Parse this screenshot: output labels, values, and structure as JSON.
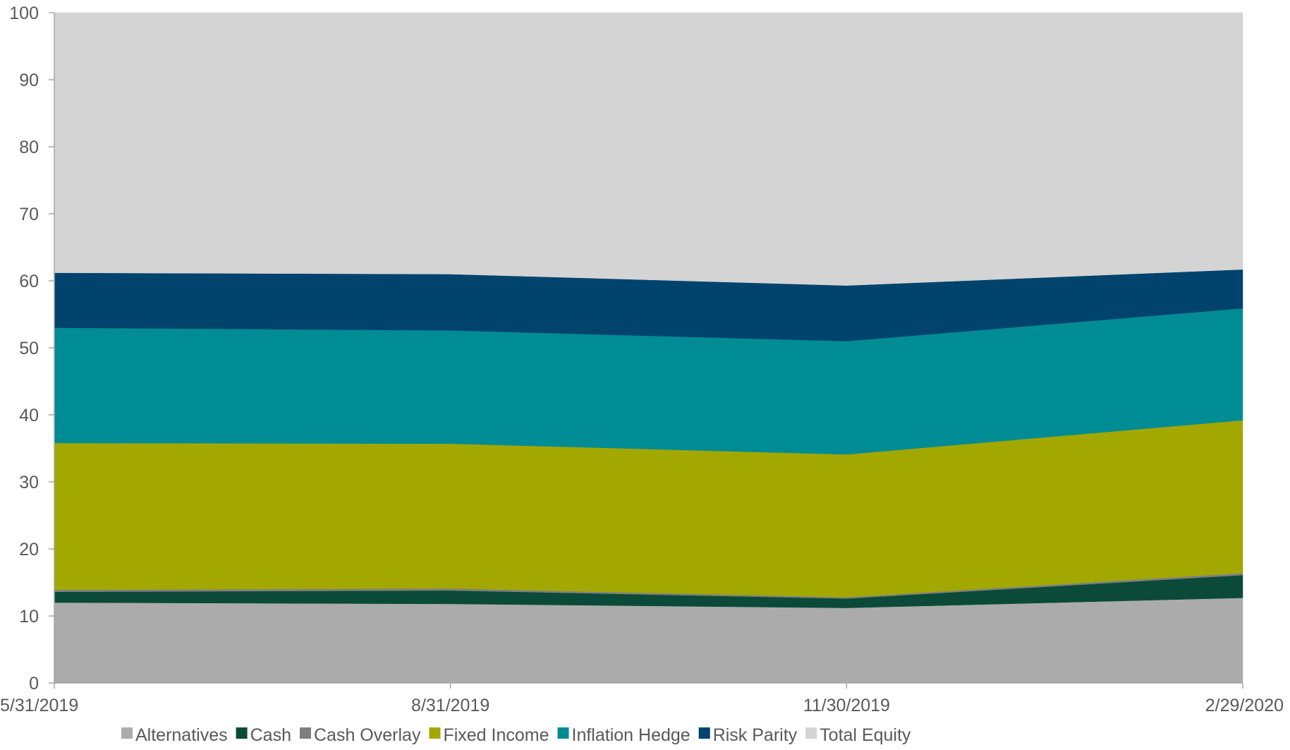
{
  "chart_data": {
    "type": "area",
    "stacked": true,
    "title": "",
    "xlabel": "",
    "ylabel": "",
    "ylim": [
      0,
      100
    ],
    "yticks": [
      0,
      10,
      20,
      30,
      40,
      50,
      60,
      70,
      80,
      90,
      100
    ],
    "grid": false,
    "legend_position": "bottom",
    "categories": [
      "5/31/2019",
      "8/31/2019",
      "11/30/2019",
      "2/29/2020"
    ],
    "series": [
      {
        "name": "Alternatives",
        "color": "#ababab",
        "values": [
          12.0,
          11.8,
          11.2,
          12.7
        ]
      },
      {
        "name": "Cash",
        "color": "#0b4a38",
        "values": [
          1.6,
          2.0,
          1.4,
          3.4
        ]
      },
      {
        "name": "Cash Overlay",
        "color": "#7f7f7f",
        "values": [
          0.3,
          0.3,
          0.2,
          0.3
        ]
      },
      {
        "name": "Fixed Income",
        "color": "#a2a800",
        "values": [
          21.9,
          21.6,
          21.3,
          22.8
        ]
      },
      {
        "name": "Inflation Hedge",
        "color": "#008c95",
        "values": [
          17.2,
          16.9,
          16.9,
          16.7
        ]
      },
      {
        "name": "Risk Parity",
        "color": "#00446e",
        "values": [
          8.2,
          8.4,
          8.3,
          5.8
        ]
      },
      {
        "name": "Total Equity",
        "color": "#d4d4d4",
        "values": [
          38.8,
          39.0,
          40.7,
          38.3
        ]
      }
    ],
    "axis_color": "#a6a6a6",
    "tick_color": "#595959"
  }
}
